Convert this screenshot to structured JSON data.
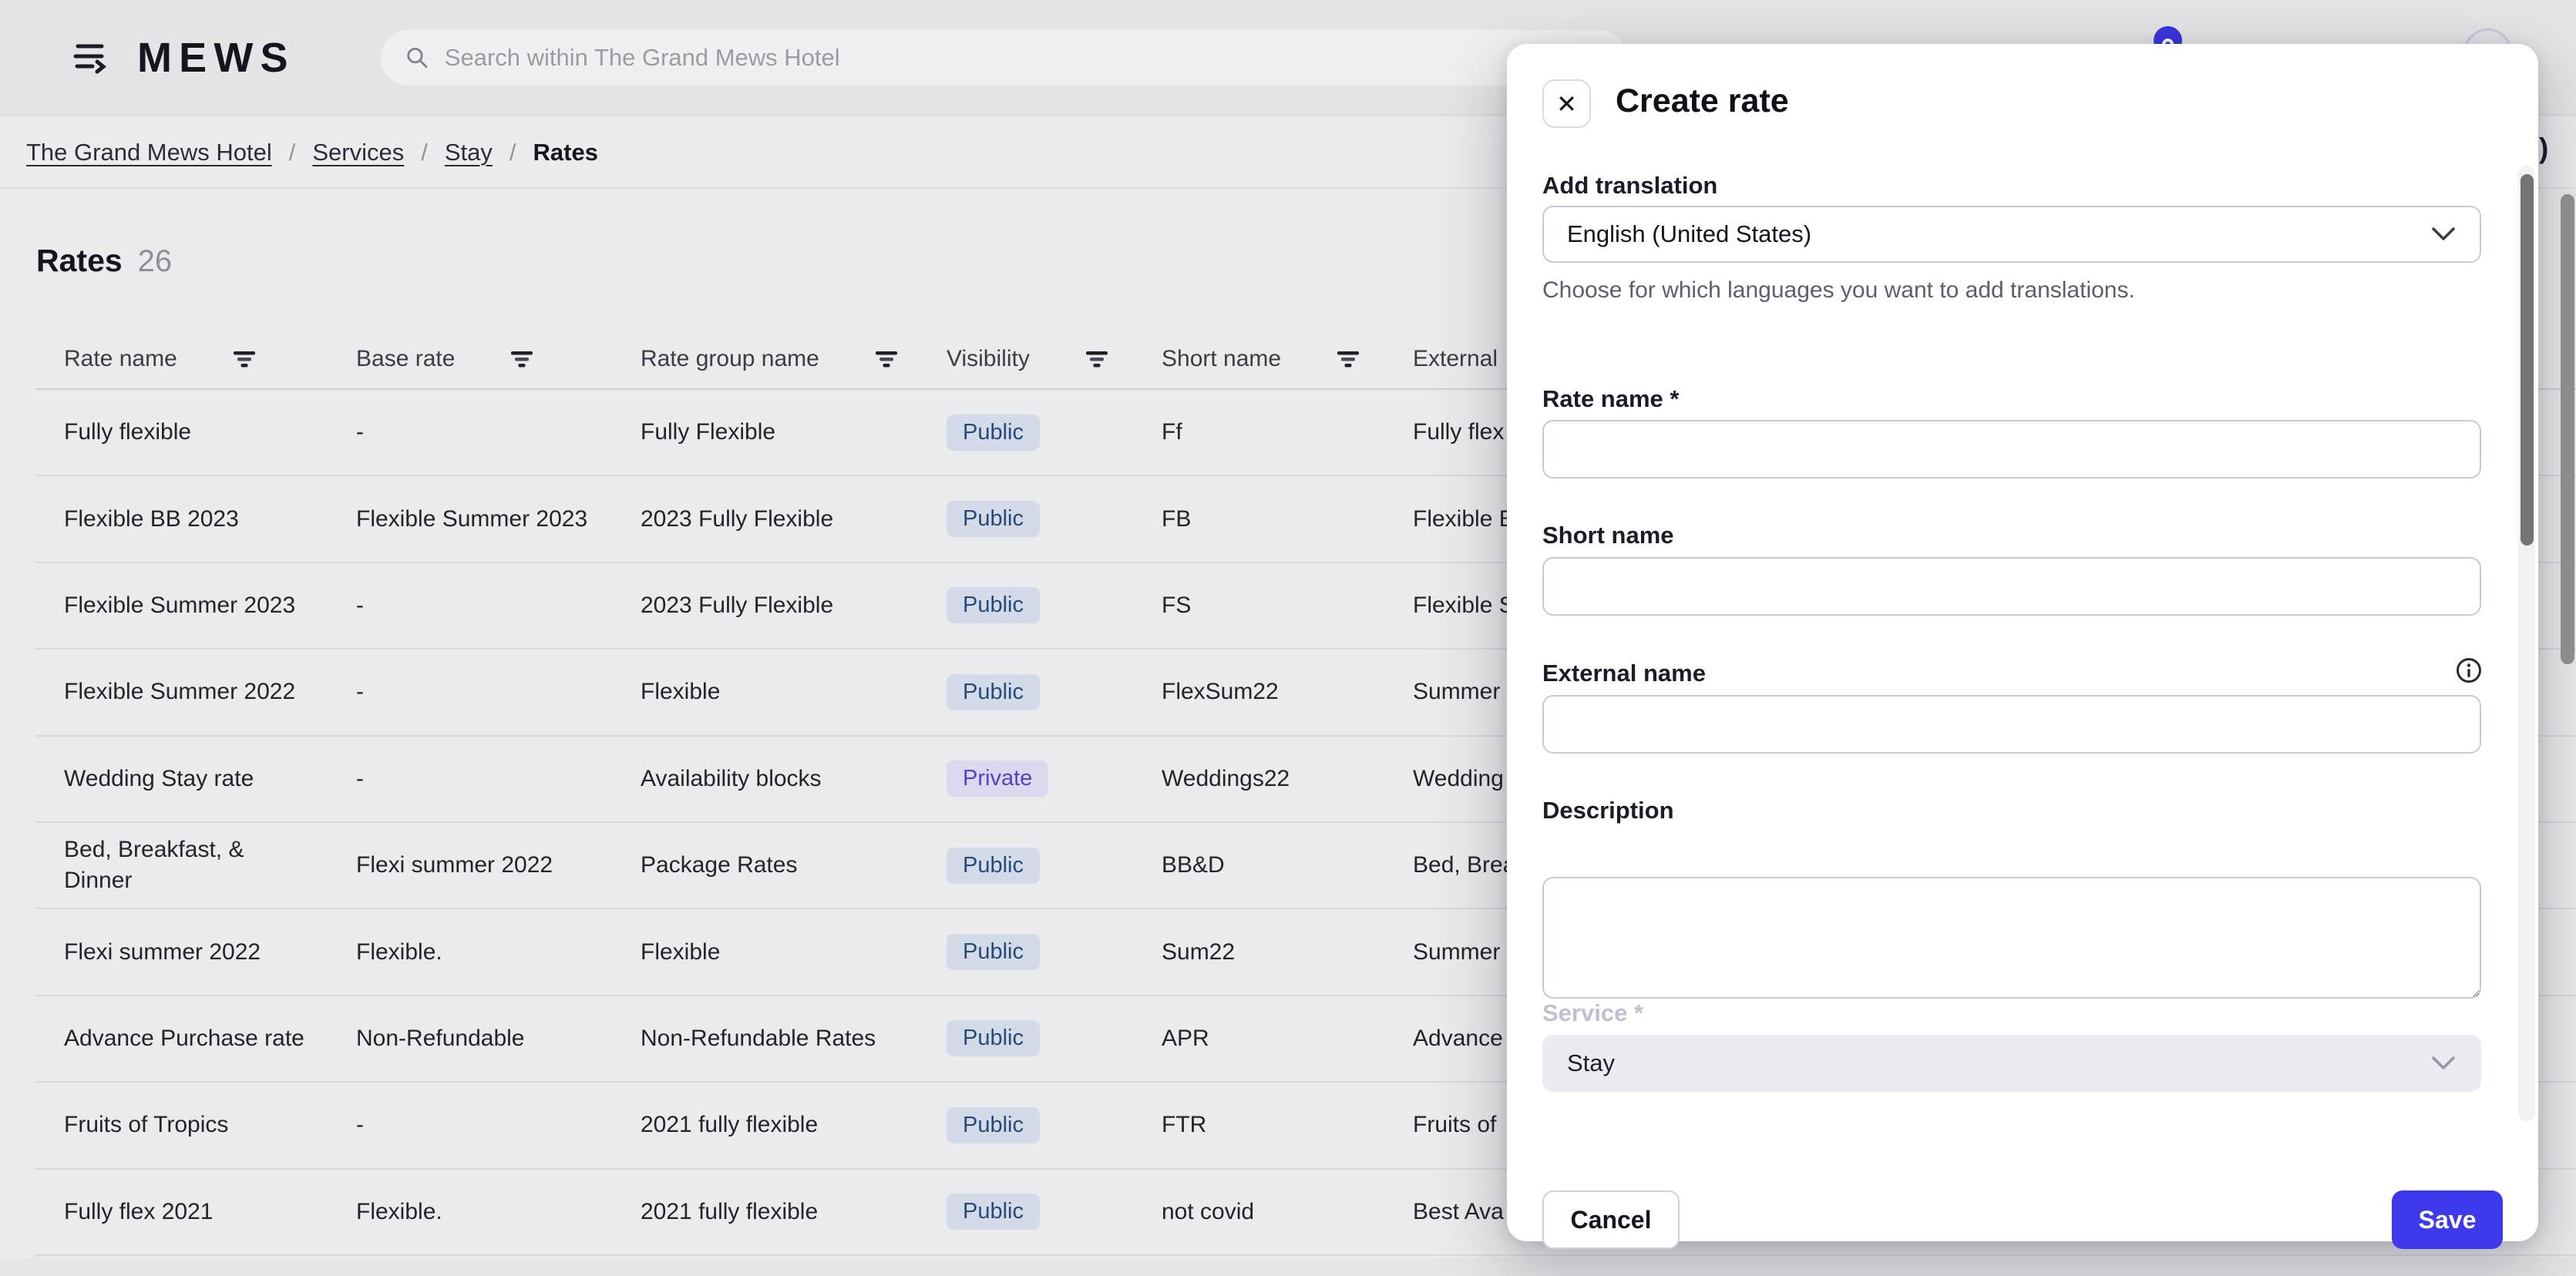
{
  "topbar": {
    "logo": "MEWS",
    "search_placeholder": "Search within The Grand Mews Hotel"
  },
  "breadcrumb": {
    "separator": "/",
    "links": [
      "The Grand Mews Hotel",
      "Services",
      "Stay"
    ],
    "current": "Rates"
  },
  "page": {
    "title": "Rates",
    "count": "26",
    "clipped_text_fragment": ")"
  },
  "table": {
    "columns": [
      {
        "label": "Rate name",
        "filter": true
      },
      {
        "label": "Base rate",
        "filter": true
      },
      {
        "label": "Rate group name",
        "filter": true
      },
      {
        "label": "Visibility",
        "filter": true
      },
      {
        "label": "Short name",
        "filter": true
      },
      {
        "label": "External",
        "filter": false
      }
    ],
    "rows": [
      {
        "rate_name": "Fully flexible",
        "base_rate": "-",
        "rate_group_name": "Fully Flexible",
        "visibility": "Public",
        "short_name": "Ff",
        "external_name": "Fully flex"
      },
      {
        "rate_name": "Flexible BB 2023",
        "base_rate": "Flexible Summer 2023",
        "rate_group_name": "2023 Fully Flexible",
        "visibility": "Public",
        "short_name": "FB",
        "external_name": "Flexible B"
      },
      {
        "rate_name": "Flexible Summer 2023",
        "base_rate": "-",
        "rate_group_name": "2023 Fully Flexible",
        "visibility": "Public",
        "short_name": "FS",
        "external_name": "Flexible S"
      },
      {
        "rate_name": "Flexible Summer 2022",
        "base_rate": "-",
        "rate_group_name": "Flexible",
        "visibility": "Public",
        "short_name": "FlexSum22",
        "external_name": "Summer"
      },
      {
        "rate_name": "Wedding Stay rate",
        "base_rate": "-",
        "rate_group_name": "Availability blocks",
        "visibility": "Private",
        "short_name": "Weddings22",
        "external_name": "Wedding"
      },
      {
        "rate_name": "Bed, Breakfast, & Dinner",
        "base_rate": "Flexi summer 2022",
        "rate_group_name": "Package Rates",
        "visibility": "Public",
        "short_name": "BB&D",
        "external_name": "Bed, Brea"
      },
      {
        "rate_name": "Flexi summer 2022",
        "base_rate": "Flexible.",
        "rate_group_name": "Flexible",
        "visibility": "Public",
        "short_name": "Sum22",
        "external_name": "Summer"
      },
      {
        "rate_name": "Advance Purchase rate",
        "base_rate": "Non-Refundable",
        "rate_group_name": "Non-Refundable Rates",
        "visibility": "Public",
        "short_name": "APR",
        "external_name": "Advance"
      },
      {
        "rate_name": "Fruits of Tropics",
        "base_rate": "-",
        "rate_group_name": "2021 fully flexible",
        "visibility": "Public",
        "short_name": "FTR",
        "external_name": "Fruits of"
      },
      {
        "rate_name": "Fully flex 2021",
        "base_rate": "Flexible.",
        "rate_group_name": "2021 fully flexible",
        "visibility": "Public",
        "short_name": "not covid",
        "external_name": "Best Ava"
      }
    ]
  },
  "modal": {
    "title": "Create rate",
    "close_glyph": "✕",
    "add_translation": {
      "label": "Add translation",
      "value": "English (United States)",
      "helper": "Choose for which languages you want to add translations."
    },
    "fields": {
      "rate_name_label": "Rate name *",
      "short_name_label": "Short name",
      "external_name_label": "External name",
      "description_label": "Description",
      "service_label": "Service *",
      "service_value": "Stay"
    },
    "buttons": {
      "cancel": "Cancel",
      "save": "Save"
    }
  },
  "colors": {
    "accent": "#3d3aee",
    "badge_public_bg": "#d3dbe8",
    "badge_public_text": "#274a78",
    "badge_private_bg": "#dcd8f0",
    "badge_private_text": "#5940c2",
    "page_bg": "#ebebed",
    "topbar_bg": "#e5e5e7"
  }
}
